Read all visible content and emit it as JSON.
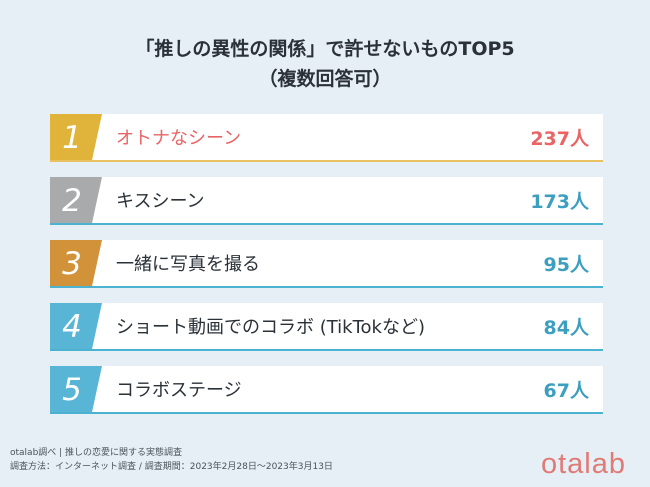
{
  "header": {
    "title_line1": "「推しの異性の関係」で許せないものTOP5",
    "title_line2": "（複数回答可）"
  },
  "chart_data": {
    "type": "table",
    "categories": [
      "オトナなシーン",
      "キスシーン",
      "一緒に写真を撮る",
      "ショート動画でのコラボ (TikTokなど)",
      "コラボステージ"
    ],
    "values": [
      237,
      173,
      95,
      84,
      67
    ],
    "unit": "人",
    "ranks": [
      "1",
      "2",
      "3",
      "4",
      "5"
    ],
    "count_labels": [
      "237人",
      "173人",
      "95人",
      "84人",
      "67人"
    ]
  },
  "rows": [
    {
      "rank": "1",
      "label": "オトナなシーン",
      "count": "237人",
      "badge_color": "#e0b43a",
      "label_color": "#e96465",
      "count_color": "#e96465",
      "accent_color": "#e8c160"
    },
    {
      "rank": "2",
      "label": "キスシーン",
      "count": "173人",
      "badge_color": "#a9aaab",
      "label_color": "#2a3138",
      "count_color": "#3c9fbf",
      "accent_color": "#4bb3cf"
    },
    {
      "rank": "3",
      "label": "一緒に写真を撮る",
      "count": "95人",
      "badge_color": "#d1923a",
      "label_color": "#2a3138",
      "count_color": "#3c9fbf",
      "accent_color": "#4bb3cf"
    },
    {
      "rank": "4",
      "label": "ショート動画でのコラボ (TikTokなど)",
      "count": "84人",
      "badge_color": "#58b5d6",
      "label_color": "#2a3138",
      "count_color": "#3c9fbf",
      "accent_color": "#4bb3cf"
    },
    {
      "rank": "5",
      "label": "コラボステージ",
      "count": "67人",
      "badge_color": "#58b5d6",
      "label_color": "#2a3138",
      "count_color": "#3c9fbf",
      "accent_color": "#4bb3cf"
    }
  ],
  "footer": {
    "line1": "otalab調べ | 推しの恋愛に関する実態調査",
    "line2": "調査方法：インターネット調査 / 調査期間：2023年2月28日〜2023年3月13日"
  },
  "brand": {
    "logo_text": "otalab",
    "logo_color": "#e07a76"
  }
}
